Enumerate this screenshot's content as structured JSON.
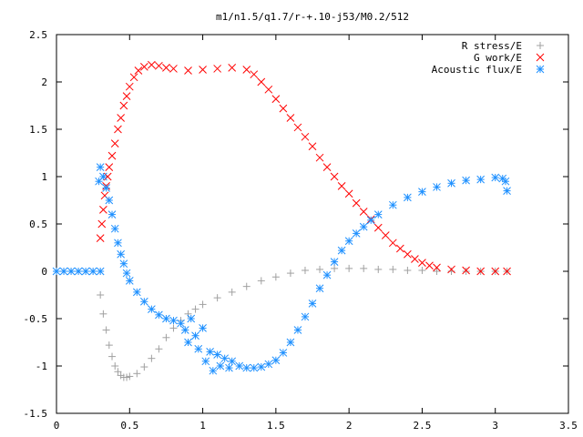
{
  "chart_data": {
    "type": "scatter",
    "title": "m1/n1.5/q1.7/r-+.10-j53/M0.2/512",
    "xlabel": "",
    "ylabel": "",
    "xlim": [
      0,
      3.5
    ],
    "ylim": [
      -1.5,
      2.5
    ],
    "x_ticks": [
      "0",
      "0.5",
      "1",
      "1.5",
      "2",
      "2.5",
      "3",
      "3.5"
    ],
    "y_ticks": [
      "2.5",
      "2",
      "1.5",
      "1",
      "0.5",
      "0",
      "-0.5",
      "-1",
      "-1.5"
    ],
    "grid": false,
    "legend_position": "top-right",
    "series": [
      {
        "name": "R stress/E",
        "marker": "plus",
        "color": "#a0a0a0",
        "points": [
          [
            0.3,
            -0.25
          ],
          [
            0.32,
            -0.45
          ],
          [
            0.34,
            -0.62
          ],
          [
            0.36,
            -0.78
          ],
          [
            0.38,
            -0.9
          ],
          [
            0.4,
            -1.0
          ],
          [
            0.42,
            -1.06
          ],
          [
            0.44,
            -1.1
          ],
          [
            0.46,
            -1.12
          ],
          [
            0.48,
            -1.12
          ],
          [
            0.5,
            -1.11
          ],
          [
            0.55,
            -1.08
          ],
          [
            0.6,
            -1.01
          ],
          [
            0.65,
            -0.92
          ],
          [
            0.7,
            -0.82
          ],
          [
            0.75,
            -0.7
          ],
          [
            0.8,
            -0.6
          ],
          [
            0.85,
            -0.52
          ],
          [
            0.9,
            -0.45
          ],
          [
            0.95,
            -0.4
          ],
          [
            1.0,
            -0.35
          ],
          [
            1.1,
            -0.28
          ],
          [
            1.2,
            -0.22
          ],
          [
            1.3,
            -0.16
          ],
          [
            1.4,
            -0.1
          ],
          [
            1.5,
            -0.06
          ],
          [
            1.6,
            -0.02
          ],
          [
            1.7,
            0.01
          ],
          [
            1.8,
            0.02
          ],
          [
            1.9,
            0.03
          ],
          [
            2.0,
            0.03
          ],
          [
            2.1,
            0.03
          ],
          [
            2.2,
            0.02
          ],
          [
            2.3,
            0.02
          ],
          [
            2.4,
            0.01
          ],
          [
            2.5,
            0.01
          ],
          [
            2.6,
            0.0
          ],
          [
            2.7,
            0.0
          ],
          [
            2.8,
            0.0
          ],
          [
            2.9,
            0.0
          ],
          [
            3.0,
            0.0
          ],
          [
            3.08,
            0.0
          ]
        ]
      },
      {
        "name": "G work/E",
        "marker": "cross",
        "color": "#ff0000",
        "points": [
          [
            0.3,
            0.35
          ],
          [
            0.31,
            0.5
          ],
          [
            0.32,
            0.65
          ],
          [
            0.33,
            0.8
          ],
          [
            0.34,
            0.9
          ],
          [
            0.35,
            1.0
          ],
          [
            0.36,
            1.1
          ],
          [
            0.38,
            1.22
          ],
          [
            0.4,
            1.35
          ],
          [
            0.42,
            1.5
          ],
          [
            0.44,
            1.62
          ],
          [
            0.46,
            1.75
          ],
          [
            0.48,
            1.85
          ],
          [
            0.5,
            1.95
          ],
          [
            0.53,
            2.05
          ],
          [
            0.56,
            2.12
          ],
          [
            0.6,
            2.16
          ],
          [
            0.65,
            2.18
          ],
          [
            0.7,
            2.17
          ],
          [
            0.75,
            2.15
          ],
          [
            0.8,
            2.14
          ],
          [
            0.9,
            2.12
          ],
          [
            1.0,
            2.13
          ],
          [
            1.1,
            2.14
          ],
          [
            1.2,
            2.15
          ],
          [
            1.3,
            2.13
          ],
          [
            1.35,
            2.08
          ],
          [
            1.4,
            2.0
          ],
          [
            1.45,
            1.92
          ],
          [
            1.5,
            1.82
          ],
          [
            1.55,
            1.72
          ],
          [
            1.6,
            1.62
          ],
          [
            1.65,
            1.52
          ],
          [
            1.7,
            1.42
          ],
          [
            1.75,
            1.32
          ],
          [
            1.8,
            1.2
          ],
          [
            1.85,
            1.1
          ],
          [
            1.9,
            1.0
          ],
          [
            1.95,
            0.9
          ],
          [
            2.0,
            0.82
          ],
          [
            2.05,
            0.72
          ],
          [
            2.1,
            0.63
          ],
          [
            2.15,
            0.55
          ],
          [
            2.2,
            0.46
          ],
          [
            2.25,
            0.38
          ],
          [
            2.3,
            0.3
          ],
          [
            2.35,
            0.24
          ],
          [
            2.4,
            0.18
          ],
          [
            2.45,
            0.13
          ],
          [
            2.5,
            0.09
          ],
          [
            2.55,
            0.06
          ],
          [
            2.6,
            0.04
          ],
          [
            2.7,
            0.02
          ],
          [
            2.8,
            0.01
          ],
          [
            2.9,
            0.0
          ],
          [
            3.0,
            0.0
          ],
          [
            3.08,
            0.0
          ]
        ]
      },
      {
        "name": "Acoustic flux/E",
        "marker": "star",
        "color": "#1e90ff",
        "points": [
          [
            0.0,
            0.0
          ],
          [
            0.05,
            0.0
          ],
          [
            0.1,
            0.0
          ],
          [
            0.15,
            0.0
          ],
          [
            0.2,
            0.0
          ],
          [
            0.25,
            0.0
          ],
          [
            0.3,
            0.0
          ],
          [
            0.29,
            0.95
          ],
          [
            0.3,
            1.1
          ],
          [
            0.32,
            1.0
          ],
          [
            0.34,
            0.88
          ],
          [
            0.36,
            0.75
          ],
          [
            0.38,
            0.6
          ],
          [
            0.4,
            0.45
          ],
          [
            0.42,
            0.3
          ],
          [
            0.44,
            0.18
          ],
          [
            0.46,
            0.08
          ],
          [
            0.48,
            -0.02
          ],
          [
            0.5,
            -0.1
          ],
          [
            0.55,
            -0.22
          ],
          [
            0.6,
            -0.32
          ],
          [
            0.65,
            -0.4
          ],
          [
            0.7,
            -0.46
          ],
          [
            0.75,
            -0.5
          ],
          [
            0.8,
            -0.52
          ],
          [
            0.85,
            -0.55
          ],
          [
            0.88,
            -0.62
          ],
          [
            0.9,
            -0.75
          ],
          [
            0.92,
            -0.5
          ],
          [
            0.95,
            -0.68
          ],
          [
            0.97,
            -0.82
          ],
          [
            1.0,
            -0.6
          ],
          [
            1.02,
            -0.95
          ],
          [
            1.05,
            -0.85
          ],
          [
            1.07,
            -1.05
          ],
          [
            1.1,
            -0.88
          ],
          [
            1.12,
            -1.0
          ],
          [
            1.15,
            -0.92
          ],
          [
            1.18,
            -1.02
          ],
          [
            1.2,
            -0.95
          ],
          [
            1.25,
            -1.0
          ],
          [
            1.3,
            -1.02
          ],
          [
            1.35,
            -1.02
          ],
          [
            1.4,
            -1.01
          ],
          [
            1.45,
            -0.98
          ],
          [
            1.5,
            -0.94
          ],
          [
            1.55,
            -0.86
          ],
          [
            1.6,
            -0.75
          ],
          [
            1.65,
            -0.62
          ],
          [
            1.7,
            -0.48
          ],
          [
            1.75,
            -0.34
          ],
          [
            1.8,
            -0.18
          ],
          [
            1.85,
            -0.04
          ],
          [
            1.9,
            0.1
          ],
          [
            1.95,
            0.22
          ],
          [
            2.0,
            0.32
          ],
          [
            2.05,
            0.4
          ],
          [
            2.1,
            0.47
          ],
          [
            2.15,
            0.54
          ],
          [
            2.2,
            0.6
          ],
          [
            2.3,
            0.7
          ],
          [
            2.4,
            0.78
          ],
          [
            2.5,
            0.84
          ],
          [
            2.6,
            0.89
          ],
          [
            2.7,
            0.93
          ],
          [
            2.8,
            0.96
          ],
          [
            2.9,
            0.97
          ],
          [
            3.0,
            0.99
          ],
          [
            3.05,
            0.98
          ],
          [
            3.07,
            0.95
          ],
          [
            3.08,
            0.85
          ]
        ]
      }
    ]
  }
}
